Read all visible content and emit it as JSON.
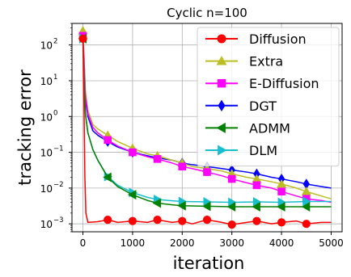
{
  "chart_data": {
    "type": "line",
    "title": "Cyclic n=100",
    "xlabel": "iteration",
    "ylabel": "tracking error",
    "x_range": [
      0,
      5000
    ],
    "y_range": [
      0.0006,
      400
    ],
    "y_scale": "log",
    "x_ticks": [
      0,
      1000,
      2000,
      3000,
      4000,
      5000
    ],
    "x_tick_labels": [
      "0",
      "1000",
      "2000",
      "3000",
      "4000",
      "5000"
    ],
    "y_ticks": [
      0.001,
      0.01,
      0.1,
      1,
      10,
      100
    ],
    "y_tick_labels": [
      "10",
      "10",
      "10",
      "10",
      "10",
      "10"
    ],
    "y_tick_exponents": [
      "−3",
      "−2",
      "−1",
      "0",
      "1",
      "2"
    ],
    "grid": true,
    "legend_position": "top-right",
    "series": [
      {
        "name": "Diffusion",
        "color": "#ff0000",
        "marker": "circle",
        "points": [
          [
            0,
            150
          ],
          [
            20,
            3
          ],
          [
            40,
            0.02
          ],
          [
            60,
            0.002
          ],
          [
            100,
            0.0011
          ],
          [
            300,
            0.00115
          ],
          [
            500,
            0.0013
          ],
          [
            700,
            0.0011
          ],
          [
            1000,
            0.0012
          ],
          [
            1300,
            0.0011
          ],
          [
            1500,
            0.0013
          ],
          [
            1800,
            0.0011
          ],
          [
            2000,
            0.0012
          ],
          [
            2200,
            0.001
          ],
          [
            2500,
            0.0013
          ],
          [
            2800,
            0.0011
          ],
          [
            3000,
            0.00095
          ],
          [
            3300,
            0.0011
          ],
          [
            3500,
            0.0012
          ],
          [
            3800,
            0.001
          ],
          [
            4000,
            0.0011
          ],
          [
            4300,
            0.0012
          ],
          [
            4500,
            0.001
          ],
          [
            4800,
            0.0011
          ],
          [
            5000,
            0.0011
          ]
        ],
        "markers_x": [
          0,
          500,
          1000,
          1500,
          2000,
          2500,
          3000,
          3500,
          4000,
          4500
        ]
      },
      {
        "name": "Extra",
        "color": "#bcbd22",
        "marker": "triangle-up",
        "points": [
          [
            0,
            250
          ],
          [
            20,
            60
          ],
          [
            50,
            5
          ],
          [
            100,
            1.5
          ],
          [
            200,
            0.6
          ],
          [
            300,
            0.45
          ],
          [
            500,
            0.3
          ],
          [
            700,
            0.2
          ],
          [
            1000,
            0.13
          ],
          [
            1300,
            0.09
          ],
          [
            1500,
            0.08
          ],
          [
            1800,
            0.06
          ],
          [
            2000,
            0.05
          ],
          [
            2200,
            0.04
          ],
          [
            2500,
            0.035
          ],
          [
            2800,
            0.03
          ],
          [
            3000,
            0.025
          ],
          [
            3300,
            0.02
          ],
          [
            3500,
            0.018
          ],
          [
            3800,
            0.015
          ],
          [
            4000,
            0.013
          ],
          [
            4300,
            0.01
          ],
          [
            4500,
            0.008
          ],
          [
            4800,
            0.006
          ],
          [
            5000,
            0.005
          ]
        ],
        "markers_x": [
          0,
          500,
          1000,
          1500,
          2000,
          2500,
          3000,
          3500,
          4000,
          4500
        ]
      },
      {
        "name": "E-Diffusion",
        "color": "#ff00ff",
        "marker": "square",
        "points": [
          [
            0,
            180
          ],
          [
            20,
            50
          ],
          [
            50,
            4
          ],
          [
            100,
            1.2
          ],
          [
            200,
            0.5
          ],
          [
            300,
            0.35
          ],
          [
            500,
            0.22
          ],
          [
            700,
            0.15
          ],
          [
            1000,
            0.1
          ],
          [
            1300,
            0.075
          ],
          [
            1500,
            0.065
          ],
          [
            1800,
            0.05
          ],
          [
            2000,
            0.04
          ],
          [
            2200,
            0.035
          ],
          [
            2500,
            0.028
          ],
          [
            2800,
            0.022
          ],
          [
            3000,
            0.018
          ],
          [
            3300,
            0.014
          ],
          [
            3500,
            0.012
          ],
          [
            3800,
            0.01
          ],
          [
            4000,
            0.008
          ],
          [
            4300,
            0.006
          ],
          [
            4500,
            0.005
          ],
          [
            4800,
            0.0045
          ],
          [
            5000,
            0.004
          ]
        ],
        "markers_x": [
          0,
          500,
          1000,
          1500,
          2000,
          2500,
          3000,
          3500,
          4000,
          4500
        ]
      },
      {
        "name": "DGT",
        "color": "#0000ff",
        "marker": "diamond",
        "points": [
          [
            0,
            150
          ],
          [
            20,
            40
          ],
          [
            50,
            3
          ],
          [
            100,
            1
          ],
          [
            200,
            0.4
          ],
          [
            300,
            0.3
          ],
          [
            500,
            0.2
          ],
          [
            700,
            0.14
          ],
          [
            1000,
            0.1
          ],
          [
            1300,
            0.08
          ],
          [
            1500,
            0.07
          ],
          [
            1800,
            0.06
          ],
          [
            2000,
            0.05
          ],
          [
            2200,
            0.045
          ],
          [
            2500,
            0.04
          ],
          [
            2800,
            0.035
          ],
          [
            3000,
            0.032
          ],
          [
            3300,
            0.028
          ],
          [
            3500,
            0.025
          ],
          [
            3800,
            0.02
          ],
          [
            4000,
            0.018
          ],
          [
            4300,
            0.015
          ],
          [
            4500,
            0.013
          ],
          [
            4800,
            0.011
          ],
          [
            5000,
            0.01
          ]
        ],
        "markers_x": [
          0,
          500,
          1000,
          1500,
          2000,
          2500,
          3000,
          3500,
          4000,
          4500
        ]
      },
      {
        "name": "ADMM",
        "color": "#008000",
        "marker": "triangle-left",
        "points": [
          [
            0,
            150
          ],
          [
            20,
            20
          ],
          [
            50,
            1.2
          ],
          [
            100,
            0.35
          ],
          [
            200,
            0.12
          ],
          [
            300,
            0.06
          ],
          [
            500,
            0.02
          ],
          [
            700,
            0.011
          ],
          [
            1000,
            0.0065
          ],
          [
            1300,
            0.0045
          ],
          [
            1500,
            0.0038
          ],
          [
            1800,
            0.0034
          ],
          [
            2000,
            0.0032
          ],
          [
            2500,
            0.0031
          ],
          [
            3000,
            0.003
          ],
          [
            3500,
            0.003
          ],
          [
            4000,
            0.003
          ],
          [
            4500,
            0.003
          ],
          [
            5000,
            0.003
          ]
        ],
        "markers_x": [
          0,
          500,
          1000,
          1500,
          2000,
          2500,
          3000,
          3500,
          4000,
          4500
        ]
      },
      {
        "name": "DLM",
        "color": "#17becf",
        "marker": "triangle-right",
        "points": [
          [
            0,
            150
          ],
          [
            20,
            20
          ],
          [
            50,
            1.2
          ],
          [
            100,
            0.35
          ],
          [
            200,
            0.12
          ],
          [
            300,
            0.06
          ],
          [
            500,
            0.021
          ],
          [
            700,
            0.012
          ],
          [
            1000,
            0.0075
          ],
          [
            1300,
            0.0055
          ],
          [
            1500,
            0.0048
          ],
          [
            1800,
            0.0044
          ],
          [
            2000,
            0.0042
          ],
          [
            2500,
            0.0041
          ],
          [
            3000,
            0.004
          ],
          [
            3500,
            0.0041
          ],
          [
            4000,
            0.004
          ],
          [
            4500,
            0.0042
          ],
          [
            5000,
            0.0042
          ]
        ],
        "markers_x": [
          0,
          500,
          1000,
          1500,
          2000,
          2500,
          3000,
          3500,
          4000,
          4500
        ]
      }
    ]
  }
}
